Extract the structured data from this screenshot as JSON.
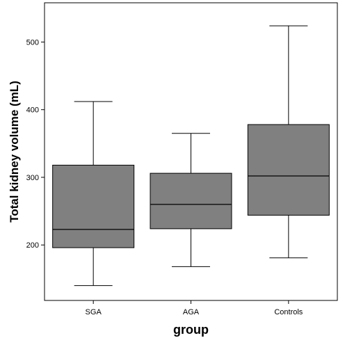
{
  "chart_data": {
    "type": "box",
    "xlabel": "group",
    "ylabel": "Total kidney volume (mL)",
    "categories": [
      "SGA",
      "AGA",
      "Controls"
    ],
    "boxes": [
      {
        "category": "SGA",
        "min": 140,
        "q1": 196,
        "median": 223,
        "q3": 318,
        "max": 412
      },
      {
        "category": "AGA",
        "min": 168,
        "q1": 224,
        "median": 260,
        "q3": 306,
        "max": 365
      },
      {
        "category": "Controls",
        "min": 181,
        "q1": 244,
        "median": 302,
        "q3": 378,
        "max": 524
      }
    ],
    "yticks": [
      200,
      300,
      400,
      500
    ],
    "ylim": [
      118,
      558
    ],
    "grid": false,
    "legend": "none",
    "box_fill": "#808080",
    "line_color": "#000000"
  }
}
